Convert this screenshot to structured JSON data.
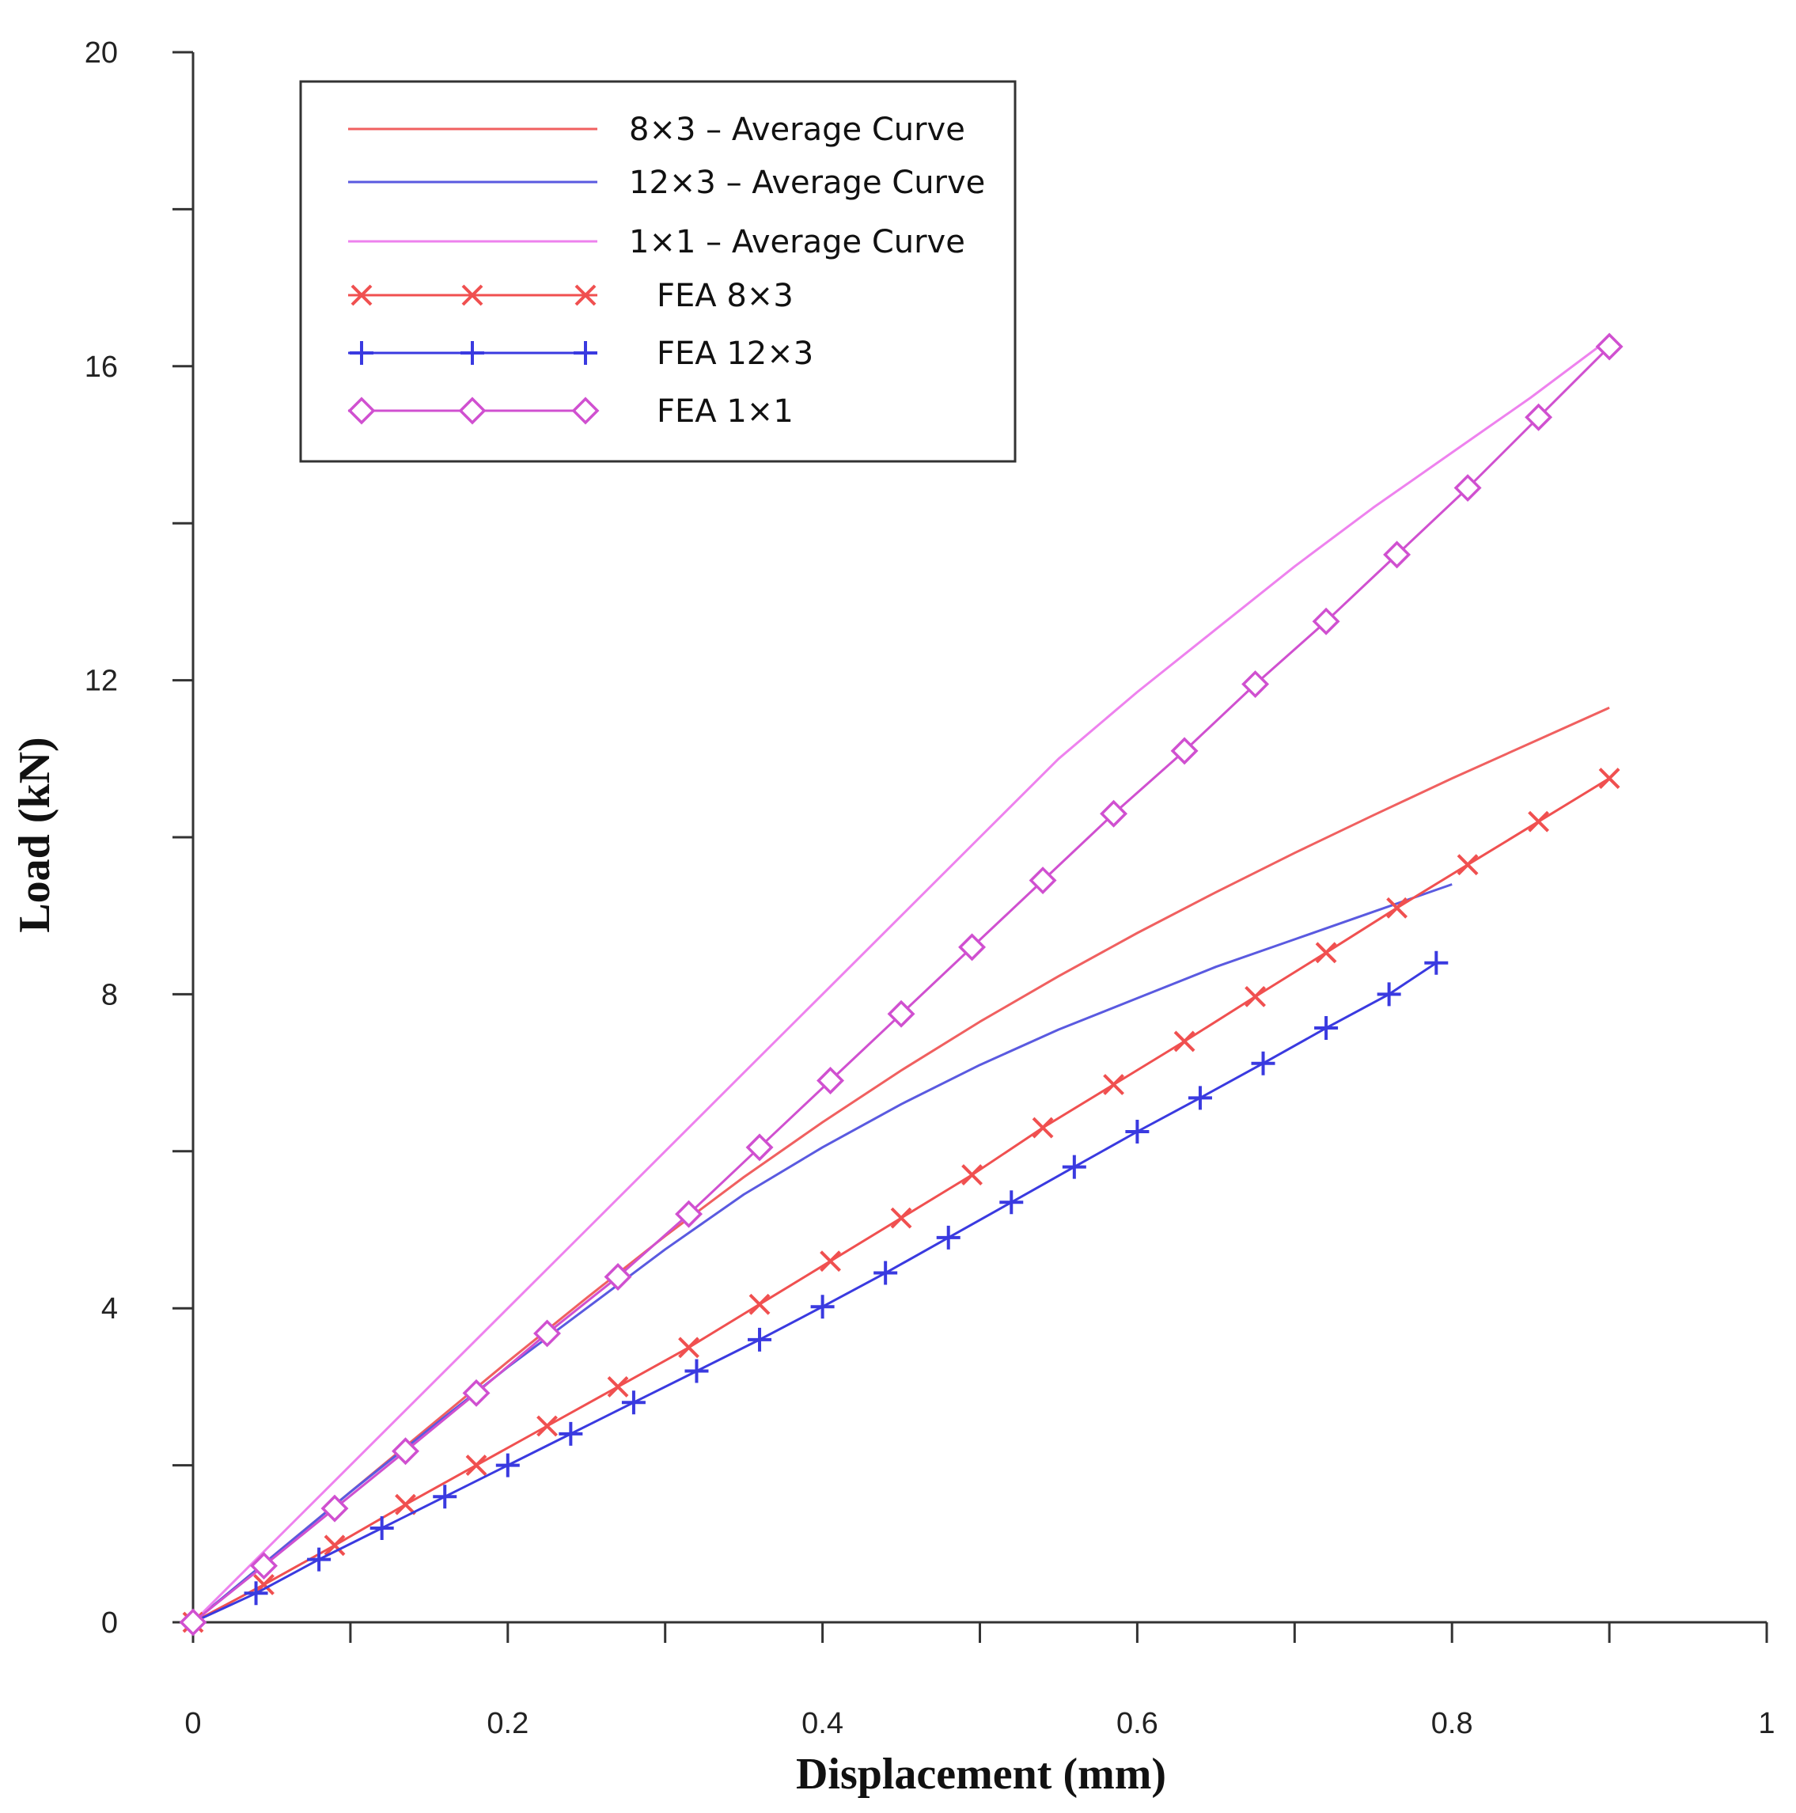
{
  "chart_data": {
    "type": "line",
    "title": "",
    "xlabel": "Displacement (mm)",
    "ylabel": "Load (kN)",
    "xlim": [
      0,
      1
    ],
    "ylim": [
      0,
      20
    ],
    "xticks": [
      "0",
      "0.2",
      "0.4",
      "0.6",
      "0.8",
      "1"
    ],
    "yticks": [
      "0",
      "4",
      "8",
      "12",
      "16",
      "20"
    ],
    "x_minor_step": 0.1,
    "y_minor_step": 2,
    "grid": false,
    "legend_position": "top-left",
    "series": [
      {
        "name": "8×3 – Average Curve",
        "style": "line",
        "color": "#f06060",
        "x": [
          0,
          0.05,
          0.1,
          0.15,
          0.2,
          0.25,
          0.3,
          0.35,
          0.4,
          0.45,
          0.5,
          0.55,
          0.6,
          0.65,
          0.7,
          0.75,
          0.8,
          0.85,
          0.9
        ],
        "y": [
          0,
          0.83,
          1.66,
          2.49,
          3.32,
          4.13,
          4.92,
          5.67,
          6.37,
          7.03,
          7.65,
          8.23,
          8.78,
          9.3,
          9.8,
          10.28,
          10.75,
          11.2,
          11.65
        ]
      },
      {
        "name": "12×3 – Average Curve",
        "style": "line",
        "color": "#5a5ae0",
        "x": [
          0,
          0.05,
          0.1,
          0.15,
          0.2,
          0.25,
          0.3,
          0.35,
          0.4,
          0.45,
          0.5,
          0.55,
          0.6,
          0.65,
          0.7,
          0.75,
          0.8
        ],
        "y": [
          0,
          0.83,
          1.66,
          2.46,
          3.25,
          4.0,
          4.75,
          5.45,
          6.05,
          6.6,
          7.1,
          7.55,
          7.95,
          8.35,
          8.7,
          9.05,
          9.4
        ]
      },
      {
        "name": "1×1 – Average Curve",
        "style": "line",
        "color": "#ee82ee",
        "x": [
          0,
          0.05,
          0.1,
          0.15,
          0.2,
          0.25,
          0.3,
          0.35,
          0.4,
          0.45,
          0.5,
          0.55,
          0.6,
          0.65,
          0.7,
          0.75,
          0.8,
          0.85,
          0.9
        ],
        "y": [
          0,
          1.0,
          2.0,
          3.0,
          4.0,
          5.0,
          6.0,
          7.0,
          8.0,
          9.0,
          10.0,
          11.0,
          11.85,
          12.65,
          13.45,
          14.2,
          14.9,
          15.6,
          16.35
        ]
      },
      {
        "name": "FEA 8×3",
        "style": "line-marker",
        "marker": "x",
        "color": "#f05050",
        "x": [
          0,
          0.045,
          0.09,
          0.135,
          0.18,
          0.225,
          0.27,
          0.315,
          0.36,
          0.405,
          0.45,
          0.495,
          0.54,
          0.585,
          0.63,
          0.675,
          0.72,
          0.765,
          0.81,
          0.855,
          0.9
        ],
        "y": [
          0,
          0.48,
          0.98,
          1.5,
          2.0,
          2.5,
          3.0,
          3.5,
          4.05,
          4.6,
          5.15,
          5.7,
          6.3,
          6.85,
          7.4,
          7.97,
          8.53,
          9.1,
          9.65,
          10.2,
          10.75
        ]
      },
      {
        "name": "FEA 12×3",
        "style": "line-marker",
        "marker": "plus",
        "color": "#3a3ae0",
        "x": [
          0,
          0.04,
          0.08,
          0.12,
          0.16,
          0.2,
          0.24,
          0.28,
          0.32,
          0.36,
          0.4,
          0.44,
          0.48,
          0.52,
          0.56,
          0.6,
          0.64,
          0.68,
          0.72,
          0.76,
          0.79
        ],
        "y": [
          0,
          0.37,
          0.8,
          1.2,
          1.6,
          2.0,
          2.4,
          2.8,
          3.2,
          3.6,
          4.02,
          4.45,
          4.9,
          5.35,
          5.8,
          6.25,
          6.68,
          7.12,
          7.57,
          8.0,
          8.4
        ]
      },
      {
        "name": "FEA 1×1",
        "style": "line-marker",
        "marker": "diamond",
        "color": "#d050d0",
        "x": [
          0,
          0.045,
          0.09,
          0.135,
          0.18,
          0.225,
          0.27,
          0.315,
          0.36,
          0.405,
          0.45,
          0.495,
          0.54,
          0.585,
          0.63,
          0.675,
          0.72,
          0.765,
          0.81,
          0.855,
          0.9
        ],
        "y": [
          0,
          0.72,
          1.45,
          2.18,
          2.92,
          3.68,
          4.4,
          5.2,
          6.05,
          6.9,
          7.75,
          8.6,
          9.45,
          10.3,
          11.1,
          11.95,
          12.75,
          13.6,
          14.45,
          15.35,
          16.25
        ]
      }
    ]
  }
}
